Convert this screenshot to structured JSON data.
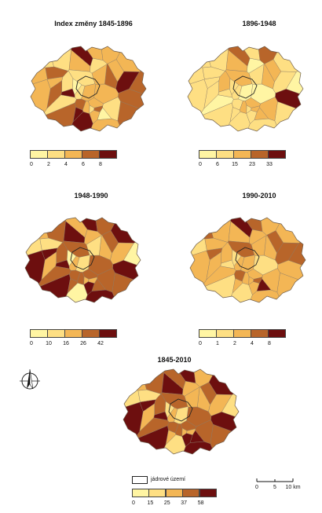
{
  "maps": [
    {
      "title": "Index změny 1845-1896",
      "ticks": [
        "0",
        "2",
        "4",
        "6",
        "8"
      ],
      "colors": [
        "#fff5a3",
        "#fedf83",
        "#f3b655",
        "#b8652a",
        "#6d0f0f"
      ],
      "districts": [
        3,
        2,
        2,
        1,
        3,
        1,
        0,
        2,
        1,
        2,
        1,
        3,
        2,
        2,
        3,
        2,
        1,
        4,
        4,
        4,
        3,
        4,
        2,
        3,
        3,
        2,
        2,
        3,
        1,
        2,
        0,
        1,
        2,
        2,
        1,
        4,
        3,
        2,
        1,
        2
      ]
    },
    {
      "title": "1896-1948",
      "ticks": [
        "0",
        "6",
        "15",
        "23",
        "33"
      ],
      "colors": [
        "#fff5a3",
        "#fedf83",
        "#f3b655",
        "#b8652a",
        "#6d0f0f"
      ],
      "districts": [
        1,
        2,
        1,
        2,
        2,
        1,
        2,
        1,
        2,
        3,
        1,
        1,
        2,
        1,
        1,
        1,
        0,
        1,
        1,
        3,
        4,
        1,
        1,
        2,
        0,
        1,
        0,
        1,
        2,
        1,
        1,
        0,
        1,
        2,
        1,
        1,
        1,
        2,
        1,
        0
      ]
    },
    {
      "title": "1948-1990",
      "ticks": [
        "0",
        "10",
        "16",
        "26",
        "42"
      ],
      "colors": [
        "#fff5a3",
        "#fedf83",
        "#f3b655",
        "#b8652a",
        "#6d0f0f"
      ],
      "districts": [
        3,
        3,
        4,
        3,
        2,
        3,
        3,
        4,
        3,
        3,
        2,
        3,
        4,
        4,
        4,
        4,
        3,
        3,
        2,
        2,
        4,
        4,
        4,
        2,
        0,
        1,
        3,
        2,
        3,
        1,
        0,
        2,
        4,
        3,
        2,
        0,
        1,
        3,
        2,
        1
      ]
    },
    {
      "title": "1990-2010",
      "ticks": [
        "0",
        "1",
        "2",
        "4",
        "8"
      ],
      "colors": [
        "#fff5a3",
        "#fedf83",
        "#f3b655",
        "#b8652a",
        "#6d0f0f"
      ],
      "districts": [
        2,
        2,
        3,
        2,
        2,
        2,
        4,
        3,
        2,
        2,
        2,
        3,
        2,
        2,
        1,
        2,
        2,
        2,
        3,
        4,
        2,
        1,
        2,
        3,
        3,
        2,
        1,
        2,
        3,
        1,
        1,
        2,
        2,
        3,
        2,
        1,
        2,
        2,
        3,
        2
      ]
    },
    {
      "title": "1845-2010",
      "ticks": [
        "0",
        "15",
        "25",
        "37",
        "58"
      ],
      "colors": [
        "#fff5a3",
        "#fedf83",
        "#f3b655",
        "#b8652a",
        "#6d0f0f"
      ],
      "districts": [
        3,
        3,
        4,
        3,
        2,
        3,
        4,
        4,
        3,
        2,
        2,
        3,
        4,
        4,
        4,
        4,
        3,
        2,
        2,
        3,
        4,
        4,
        4,
        2,
        1,
        2,
        3,
        2,
        3,
        1,
        1,
        2,
        4,
        3,
        2,
        1,
        1,
        3,
        2,
        1
      ]
    }
  ],
  "core_legend_label": "jádrové území",
  "scale_bar": {
    "ticks": [
      "0",
      "5",
      "10 km"
    ]
  },
  "north_arrow": "north-arrow-icon"
}
